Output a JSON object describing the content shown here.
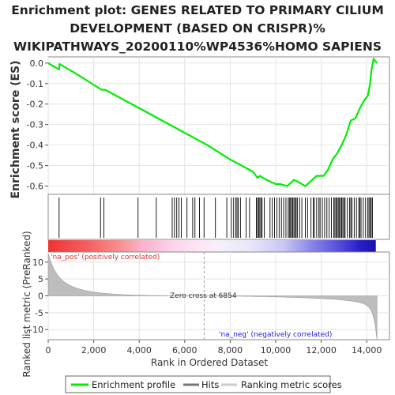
{
  "chart_data": {
    "type": "line",
    "title_lines": [
      "Enrichment plot: GENES RELATED TO PRIMARY CILIUM",
      "DEVELOPMENT (BASED ON CRISPR)%",
      "WIKIPATHWAYS_20200110%WP4536%HOMO SAPIENS"
    ],
    "ylabel_top": "Enrichment score (ES)",
    "ylabel_bottom": "Ranked list metric (PreRanked)",
    "xlabel": "Rank in Ordered Dataset",
    "xlim": [
      0,
      15000
    ],
    "ylim_top": [
      -0.64,
      0.03
    ],
    "ylim_bottom": [
      -13,
      13
    ],
    "x_ticks": [
      0,
      2000,
      4000,
      6000,
      8000,
      10000,
      12000,
      14000
    ],
    "x_tick_labels": [
      "0",
      "2,000",
      "4,000",
      "6,000",
      "8,000",
      "10,000",
      "12,000",
      "14,000"
    ],
    "y_ticks_top": [
      0.0,
      -0.1,
      -0.2,
      -0.3,
      -0.4,
      -0.5,
      -0.6
    ],
    "y_tick_labels_top": [
      "0.0",
      "-0.1",
      "-0.2",
      "-0.3",
      "-0.4",
      "-0.5",
      "-0.6"
    ],
    "y_ticks_bottom": [
      10,
      5,
      0,
      -5,
      -10
    ],
    "y_tick_labels_bottom": [
      "10",
      "5",
      "0",
      "-5",
      "-10"
    ],
    "series": [
      {
        "name": "Enrichment profile",
        "color": "#00ee00",
        "x": [
          0,
          300,
          480,
          500,
          1200,
          2200,
          2350,
          2500,
          4000,
          5000,
          6000,
          7000,
          8000,
          9000,
          9200,
          9300,
          9600,
          10000,
          10200,
          10500,
          10800,
          11000,
          11300,
          11600,
          11800,
          12100,
          12300,
          12500,
          12700,
          12900,
          13100,
          13300,
          13500,
          13700,
          13900,
          14050,
          14150,
          14200,
          14300,
          14450
        ],
        "y": [
          0.0,
          -0.02,
          -0.03,
          -0.005,
          -0.05,
          -0.12,
          -0.13,
          -0.13,
          -0.22,
          -0.28,
          -0.34,
          -0.4,
          -0.47,
          -0.53,
          -0.56,
          -0.55,
          -0.57,
          -0.59,
          -0.59,
          -0.6,
          -0.57,
          -0.58,
          -0.6,
          -0.57,
          -0.55,
          -0.55,
          -0.52,
          -0.47,
          -0.44,
          -0.4,
          -0.35,
          -0.28,
          -0.27,
          -0.22,
          -0.18,
          -0.16,
          -0.1,
          -0.04,
          0.02,
          0.0
        ]
      }
    ],
    "hits": [
      480,
      2300,
      2450,
      3950,
      4750,
      5450,
      5550,
      5650,
      5750,
      5850,
      6100,
      6350,
      6450,
      6650,
      6850,
      7350,
      7850,
      8050,
      8150,
      8250,
      8300,
      8350,
      8450,
      8700,
      8850,
      9150,
      9200,
      9250,
      9300,
      9350,
      9400,
      9500,
      9750,
      9850,
      9950,
      10050,
      10150,
      10250,
      10350,
      10450,
      10550,
      10600,
      10650,
      10700,
      10750,
      10800,
      10850,
      10900,
      10950,
      11050,
      11150,
      11300,
      11400,
      11550,
      11650,
      11700,
      11800,
      11900,
      11950,
      12050,
      12150,
      12250,
      12350,
      12450,
      12550,
      12600,
      12650,
      12700,
      12750,
      12800,
      12850,
      12900,
      12950,
      13000,
      13050,
      13150,
      13250,
      13300,
      13350,
      13450,
      13550,
      13650,
      13700,
      13750,
      13850,
      13950,
      14050,
      14100,
      14150,
      14200,
      14250
    ],
    "zero_cross": 6854,
    "zero_cross_label": "Zero cross at 6854",
    "pos_label": "'na_pos' (positively correlated)",
    "neg_label": "'na_neg' (negatively correlated)",
    "legend": [
      {
        "label": "Enrichment profile",
        "color": "#00ee00"
      },
      {
        "label": "Hits",
        "color": "#777777"
      },
      {
        "label": "Ranking metric scores",
        "color": "#cccccc"
      }
    ],
    "legend_position": "bottom",
    "grid": true
  }
}
